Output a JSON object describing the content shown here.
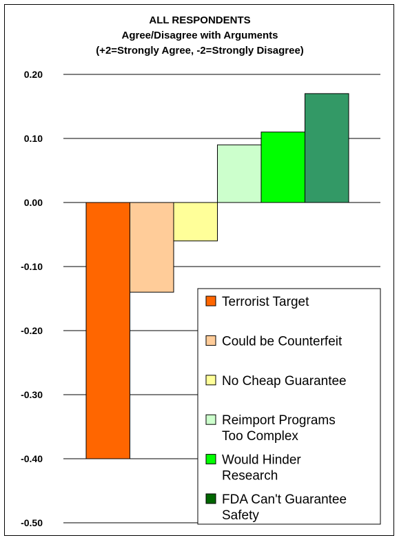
{
  "chart_data": {
    "type": "bar",
    "title": [
      "ALL RESPONDENTS",
      "Agree/Disagree with Arguments",
      "(+2=Strongly Agree, -2=Strongly Disagree)"
    ],
    "xlabel": "",
    "ylabel": "",
    "ylim": [
      -0.5,
      0.2
    ],
    "y_ticks": [
      "0.20",
      "0.10",
      "0.00",
      "-0.10",
      "-0.20",
      "-0.30",
      "-0.40",
      "-0.50"
    ],
    "grid": true,
    "legend_position": "bottom-right",
    "series": [
      {
        "name": "Terrorist Target",
        "value": -0.4,
        "color": "#ff6600"
      },
      {
        "name": "Could be Counterfeit",
        "value": -0.14,
        "color": "#ffcc99"
      },
      {
        "name": "No Cheap Guarantee",
        "value": -0.06,
        "color": "#ffff99"
      },
      {
        "name": "Reimport Programs Too Complex",
        "value": 0.09,
        "color": "#ccffcc"
      },
      {
        "name": "Would Hinder Research",
        "value": 0.11,
        "color": "#00ff00"
      },
      {
        "name": "FDA Can't Guarantee Safety",
        "value": 0.17,
        "color": "#339966"
      }
    ],
    "legend_lines": [
      [
        "Terrorist Target"
      ],
      [
        "Could be Counterfeit"
      ],
      [
        "No Cheap Guarantee"
      ],
      [
        "Reimport Programs",
        "Too Complex"
      ],
      [
        "Would Hinder",
        "Research"
      ],
      [
        "FDA Can't Guarantee",
        "Safety"
      ]
    ],
    "legend_swatch_colors": [
      "#ff6600",
      "#ffcc99",
      "#ffff99",
      "#ccffcc",
      "#00ff00",
      "#006600"
    ]
  }
}
